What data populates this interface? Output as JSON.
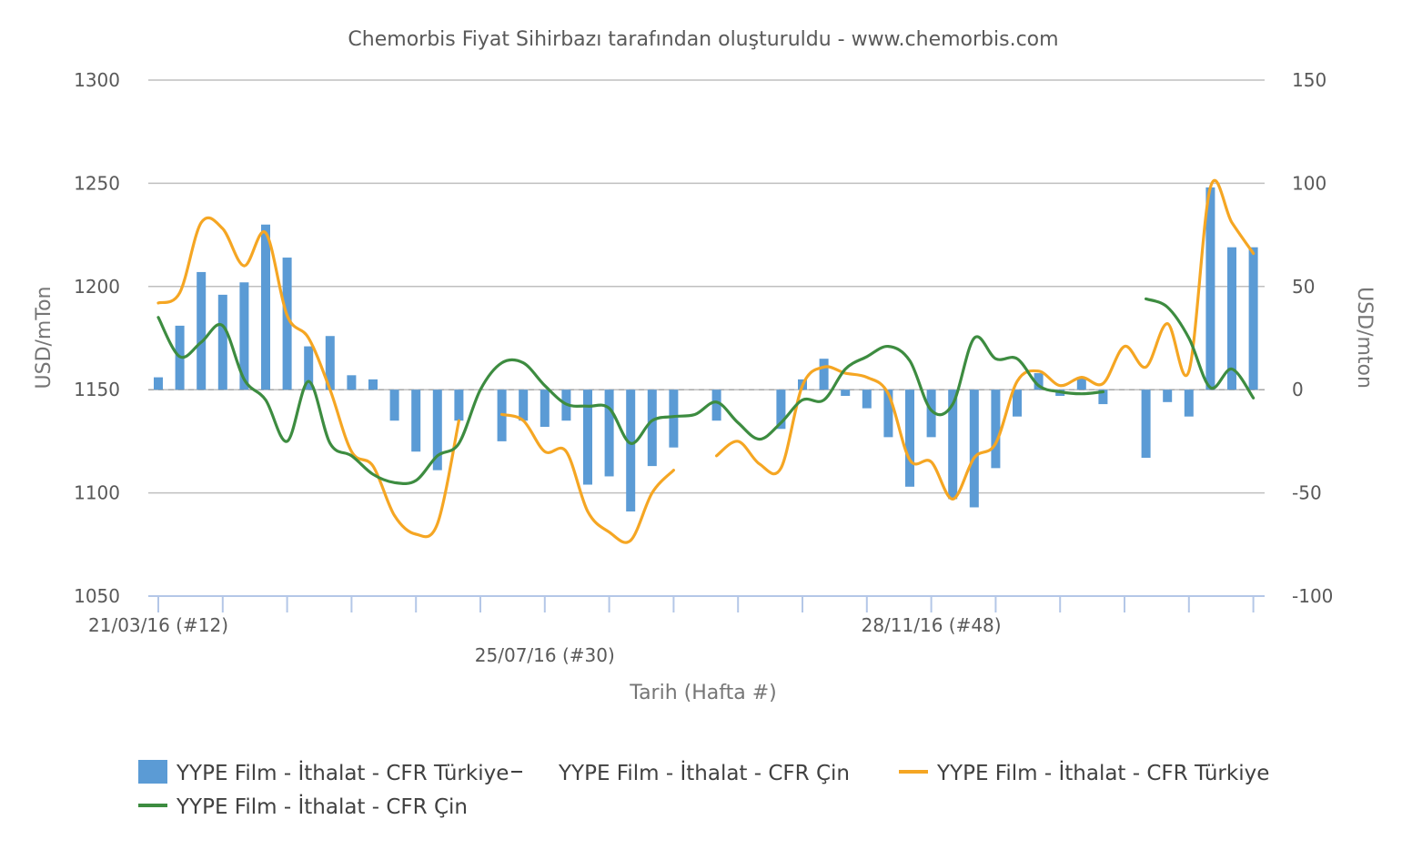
{
  "title": "Chemorbis Fiyat Sihirbazı tarafından oluşturuldu - www.chemorbis.com",
  "colors": {
    "bar": "#5b9bd5",
    "turkey_line": "#f5a623",
    "china_line": "#3d8c40",
    "grid": "#bfbfbf",
    "axis": "#b4c7e7",
    "text": "#595959"
  },
  "legend": [
    {
      "label": "YYPE Film - İthalat - CFR Türkiye",
      "marker": "bar"
    },
    {
      "label": "YYPE Film - İthalat - CFR Çin",
      "marker": "dash"
    },
    {
      "label": "YYPE Film - İthalat - CFR Türkiye",
      "marker": "turkey-line"
    },
    {
      "label": "YYPE Film - İthalat - CFR Çin",
      "marker": "china-line"
    }
  ],
  "chart_data": {
    "type": "bar+line",
    "title": "Chemorbis Fiyat Sihirbazı tarafından oluşturuldu - www.chemorbis.com",
    "xlabel": "Tarih (Hafta #)",
    "ylabel_left": "USD/mTon",
    "ylabel_right": "USD/mton",
    "ylim_left": [
      1050,
      1300
    ],
    "ylim_right": [
      -100,
      150
    ],
    "yticks_left": [
      1300,
      1250,
      1200,
      1150,
      1100,
      1050
    ],
    "yticks_right": [
      150,
      100,
      50,
      0,
      -50,
      -100
    ],
    "x_tick_labels": [
      {
        "label": "21/03/16 (#12)",
        "week_index": 0,
        "row": 1
      },
      {
        "label": "25/07/16 (#30)",
        "week_index": 18,
        "row": 2
      },
      {
        "label": "28/11/16 (#48)",
        "week_index": 36,
        "row": 1
      }
    ],
    "grid": true,
    "legend_position": "bottom",
    "n_weeks": 52,
    "series": [
      {
        "name": "YYPE Film - İthalat - CFR Türkiye",
        "type": "bar",
        "axis": "right",
        "values": [
          6,
          31,
          57,
          46,
          52,
          80,
          64,
          21,
          26,
          7,
          5,
          -15,
          -30,
          -39,
          -15,
          null,
          -25,
          -15,
          -18,
          -15,
          -46,
          -42,
          -59,
          -37,
          -28,
          null,
          -15,
          null,
          null,
          -19,
          5,
          15,
          -3,
          -9,
          -23,
          -47,
          -23,
          -53,
          -57,
          -38,
          -13,
          8,
          -3,
          6,
          -7,
          null,
          -33,
          -6,
          -13,
          98,
          69,
          69
        ]
      },
      {
        "name": "YYPE Film - İthalat - CFR Türkiye",
        "type": "line",
        "axis": "left",
        "values": [
          1192,
          1197,
          1231,
          1228,
          1210,
          1226,
          1186,
          1175,
          1150,
          1120,
          1113,
          1089,
          1080,
          1085,
          1135,
          null,
          1138,
          1135,
          1120,
          1120,
          1091,
          1081,
          1077,
          1100,
          1111,
          null,
          1118,
          1125,
          1114,
          1112,
          1152,
          1161,
          1158,
          1156,
          1148,
          1116,
          1115,
          1097,
          1117,
          1124,
          1154,
          1159,
          1152,
          1156,
          1153,
          1171,
          1161,
          1182,
          1159,
          1248,
          1231,
          1216
        ]
      },
      {
        "name": "YYPE Film - İthalat - CFR Çin",
        "type": "line",
        "axis": "left",
        "values": [
          1185,
          1166,
          1173,
          1181,
          1155,
          1145,
          1125,
          1154,
          1124,
          1118,
          1109,
          1105,
          1106,
          1118,
          1124,
          1150,
          1163,
          1163,
          1152,
          1143,
          1142,
          1141,
          1124,
          1135,
          1137,
          1138,
          1144,
          1134,
          1126,
          1134,
          1145,
          1145,
          1160,
          1166,
          1171,
          1164,
          1140,
          1143,
          1175,
          1165,
          1165,
          1152,
          1149,
          1148,
          1149,
          null,
          1194,
          1190,
          1175,
          1151,
          1160,
          1146
        ]
      }
    ]
  }
}
